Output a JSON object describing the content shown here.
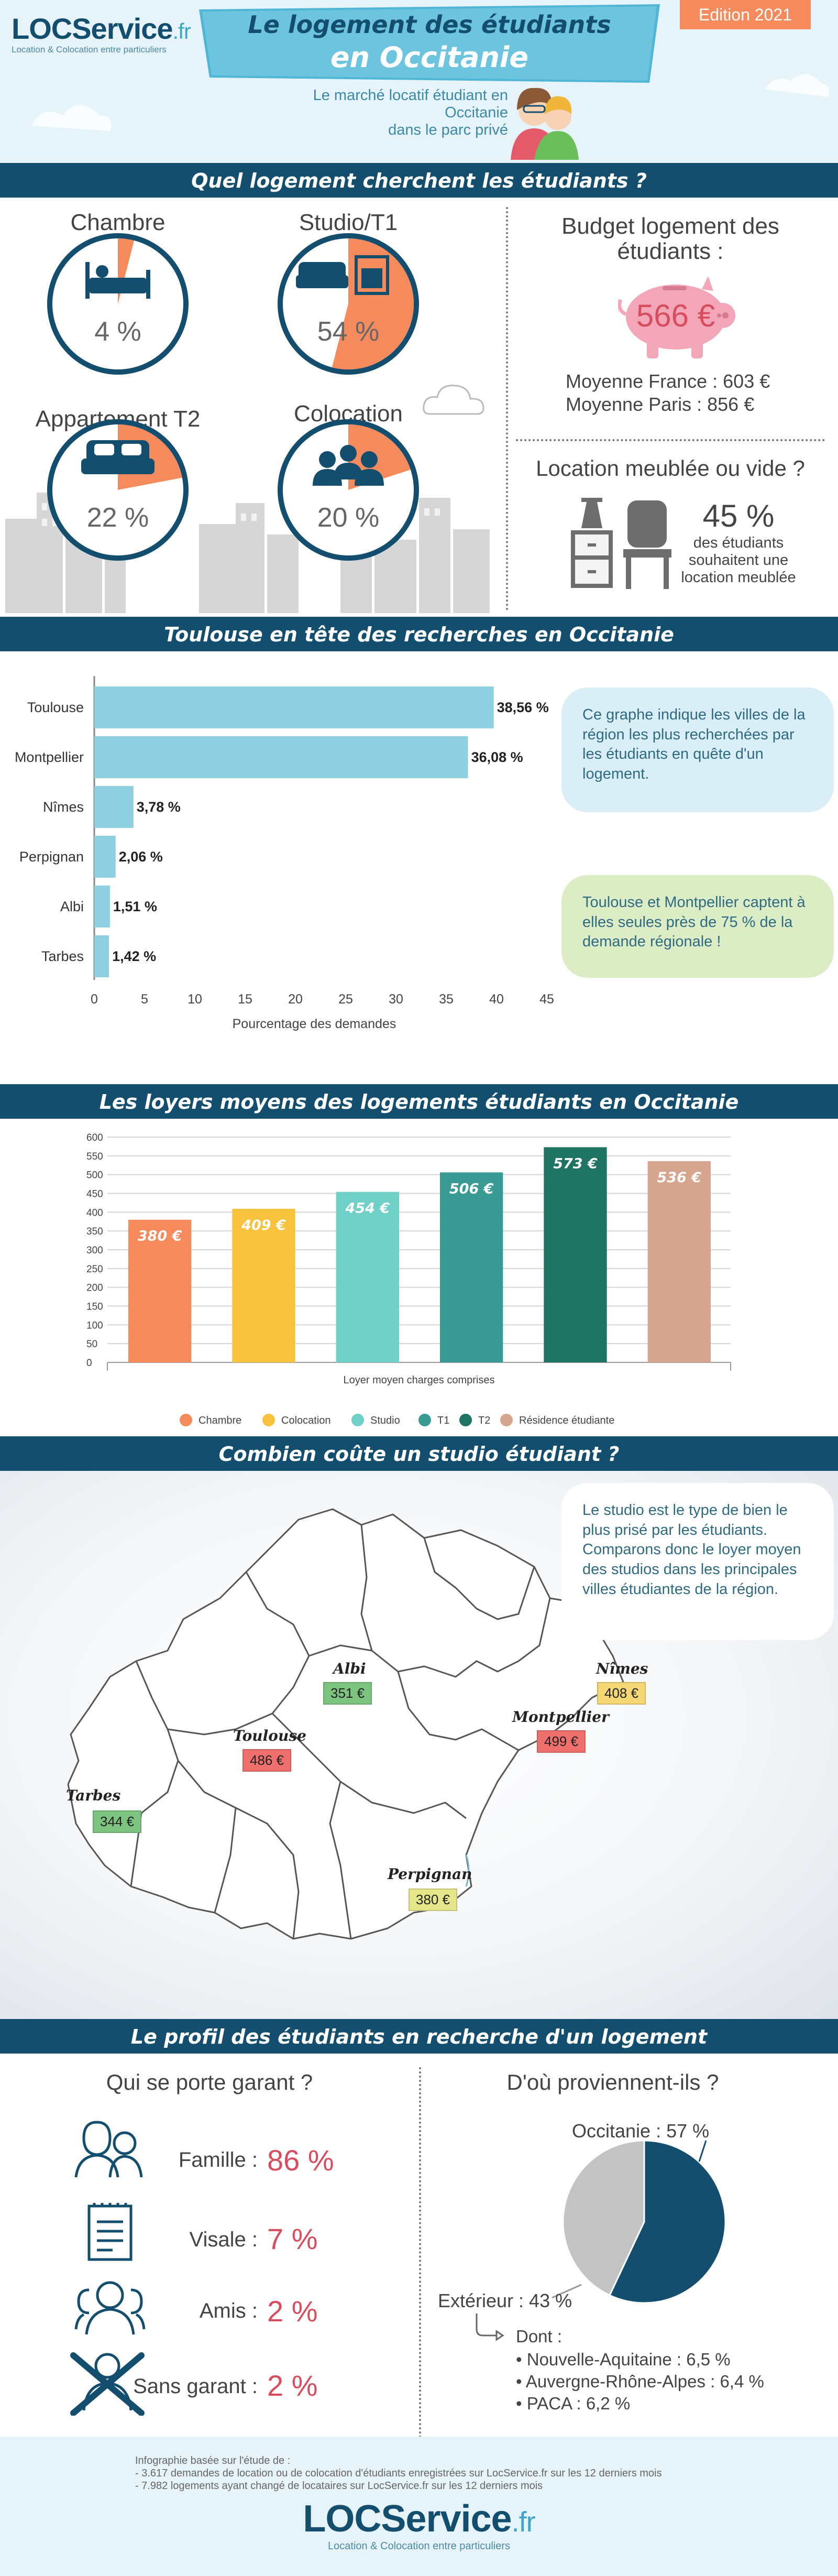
{
  "header": {
    "logo_main": "LOCService",
    "logo_suffix": ".fr",
    "logo_tagline": "Location & Colocation entre particuliers",
    "title_line1": "Le logement des étudiants",
    "title_line2": "en Occitanie",
    "edition": "Edition 2021",
    "subtitle_line1": "Le marché locatif étudiant en",
    "subtitle_line2": "Occitanie",
    "subtitle_line3": "dans le parc privé"
  },
  "section1": {
    "title": "Quel logement cherchent les étudiants ?",
    "donuts": [
      {
        "label": "Chambre",
        "value_text": "4 %",
        "value": 4,
        "icon": "bed-icon"
      },
      {
        "label": "Studio/T1",
        "value_text": "54 %",
        "value": 54,
        "icon": "sofa-oven-icon"
      },
      {
        "label": "Appartement T2",
        "value_text": "22 %",
        "value": 22,
        "icon": "sofa-icon"
      },
      {
        "label": "Colocation",
        "value_text": "20 %",
        "value": 20,
        "icon": "group-icon"
      }
    ],
    "budget": {
      "title_line1": "Budget logement des",
      "title_line2": "étudiants :",
      "value": "566 €",
      "france": "Moyenne France : 603 €",
      "paris": "Moyenne Paris : 856 €"
    },
    "furnished": {
      "title": "Location meublée ou vide ?",
      "value": "45 %",
      "text_line1": "des étudiants",
      "text_line2": "souhaitent une",
      "text_line3": "location meublée"
    }
  },
  "section2": {
    "title": "Toulouse en tête des recherches en Occitanie",
    "bubble1": "Ce graphe indique les villes de la région les plus recherchées par les étudiants en quête d'un logement.",
    "bubble2": "Toulouse et Montpellier captent à elles seules près de 75 % de la demande régionale !"
  },
  "section3": {
    "title": "Les loyers moyens des logements étudiants en Occitanie"
  },
  "section4": {
    "title": "Combien coûte un studio étudiant ?",
    "bubble": "Le studio est le type de bien le plus prisé par les étudiants. Comparons donc le loyer moyen des studios dans les principales villes étudiantes de la région.",
    "cities": [
      {
        "name": "Albi",
        "price": "351 €",
        "color": "#7cc47f"
      },
      {
        "name": "Nîmes",
        "price": "408 €",
        "color": "#f6d776"
      },
      {
        "name": "Toulouse",
        "price": "486 €",
        "color": "#ef6f6c"
      },
      {
        "name": "Montpellier",
        "price": "499 €",
        "color": "#ef6f6c"
      },
      {
        "name": "Tarbes",
        "price": "344 €",
        "color": "#7cc47f"
      },
      {
        "name": "Perpignan",
        "price": "380 €",
        "color": "#e5e58a"
      }
    ]
  },
  "section5": {
    "title": "Le profil des étudiants en recherche d'un logement",
    "garant_title": "Qui se porte garant ?",
    "garants": [
      {
        "label": "Famille :",
        "value": "86 %",
        "icon": "family-icon"
      },
      {
        "label": "Visale :",
        "value": "7 %",
        "icon": "document-icon"
      },
      {
        "label": "Amis :",
        "value": "2 %",
        "icon": "friends-icon"
      },
      {
        "label": "Sans garant :",
        "value": "2 %",
        "icon": "no-guarantor-icon"
      }
    ],
    "origin_title": "D'où proviennent-ils ?",
    "occitanie": "Occitanie : 57 %",
    "exterieur": "Extérieur : 43 %",
    "dont": "Dont :",
    "regions": [
      "Nouvelle-Aquitaine : 6,5 %",
      "Auvergne-Rhône-Alpes : 6,4 %",
      "PACA : 6,2 %"
    ]
  },
  "footer": {
    "source_title": "Infographie basée sur l'étude de :",
    "source1": "- 3.617 demandes de location ou de colocation d'étudiants enregistrées sur LocService.fr sur les 12 derniers mois",
    "source2": "- 7.982 logements ayant changé de locataires sur LocService.fr sur les 12 derniers mois",
    "logo_main": "LOCService",
    "logo_suffix": ".fr",
    "logo_tagline": "Location & Colocation entre particuliers"
  },
  "chart_data": [
    {
      "type": "bar",
      "orientation": "horizontal",
      "categories": [
        "Toulouse",
        "Montpellier",
        "Nîmes",
        "Perpignan",
        "Albi",
        "Tarbes"
      ],
      "values": [
        38.56,
        36.08,
        3.78,
        2.06,
        1.51,
        1.42
      ],
      "value_labels": [
        "38,56 %",
        "36,08 %",
        "3,78 %",
        "2,06 %",
        "1,51 %",
        "1,42 %"
      ],
      "xlabel": "Pourcentage des demandes",
      "xlim": [
        0,
        45
      ],
      "xticks": [
        "0",
        "5",
        "10",
        "15",
        "20",
        "25",
        "30",
        "35",
        "40",
        "45"
      ],
      "color": "#8fd0e0"
    },
    {
      "type": "bar",
      "categories": [
        "Chambre",
        "Colocation",
        "Studio",
        "T1",
        "T2",
        "Résidence étudiante"
      ],
      "values": [
        380,
        409,
        454,
        506,
        573,
        536
      ],
      "value_labels": [
        "380 €",
        "409 €",
        "454 €",
        "506 €",
        "573 €",
        "536 €"
      ],
      "colors": [
        "#f58a5c",
        "#f9c23c",
        "#6fd0c7",
        "#3a9b94",
        "#1f7363",
        "#d6a58e"
      ],
      "xlabel": "Loyer moyen charges comprises",
      "ylim": [
        0,
        600
      ],
      "yticks": [
        "0",
        "50",
        "100",
        "150",
        "200",
        "250",
        "300",
        "350",
        "400",
        "450",
        "500",
        "550",
        "600"
      ],
      "grid": true,
      "legend": "bottom"
    },
    {
      "type": "pie",
      "labels": [
        "Occitanie",
        "Extérieur"
      ],
      "values": [
        57,
        43
      ],
      "colors": [
        "#134e6f",
        "#c3c3c3"
      ]
    }
  ]
}
